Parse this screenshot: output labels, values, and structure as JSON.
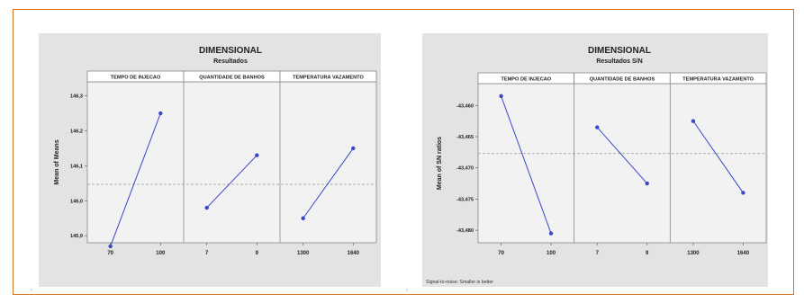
{
  "chart_data": [
    {
      "type": "line",
      "title": "DIMENSIONAL",
      "subtitle": "Resultados",
      "ylabel": "Mean of Means",
      "xlabel": "",
      "ylim": [
        145.88,
        146.34
      ],
      "yticks": [
        145.9,
        146.0,
        146.1,
        146.2,
        146.3
      ],
      "ytick_labels": [
        "145,9",
        "146,0",
        "146,1",
        "146,2",
        "146,3"
      ],
      "reference_line": 146.047,
      "grid": false,
      "panels": [
        {
          "name": "TEMPO DE INJECAO",
          "categories": [
            "70",
            "100"
          ],
          "values": [
            145.87,
            146.25
          ]
        },
        {
          "name": "QUANTIDADE DE BANHOS",
          "categories": [
            "7",
            "9"
          ],
          "values": [
            145.98,
            146.13
          ]
        },
        {
          "name": "TEMPERATURA VAZAMENTO",
          "categories": [
            "1300",
            "1640"
          ],
          "values": [
            145.95,
            146.15
          ]
        }
      ],
      "footnote": ""
    },
    {
      "type": "line",
      "title": "DIMENSIONAL",
      "subtitle": "Resultados S/N",
      "ylabel": "Mean of SN ratios",
      "xlabel": "",
      "ylim": [
        -43.482,
        -43.4565
      ],
      "yticks": [
        -43.46,
        -43.465,
        -43.47,
        -43.475,
        -43.48
      ],
      "ytick_labels": [
        "-43,460",
        "-43,465",
        "-43,470",
        "-43,475",
        "-43,480"
      ],
      "reference_line": -43.4677,
      "grid": false,
      "panels": [
        {
          "name": "TEMPO DE INJECAO",
          "categories": [
            "70",
            "100"
          ],
          "values": [
            -43.4585,
            -43.4805
          ]
        },
        {
          "name": "QUANTIDADE DE BANHOS",
          "categories": [
            "7",
            "9"
          ],
          "values": [
            -43.4635,
            -43.4725
          ]
        },
        {
          "name": "TEMPERATURA VAZAMENTO",
          "categories": [
            "1300",
            "1640"
          ],
          "values": [
            -43.4625,
            -43.474
          ]
        }
      ],
      "footnote": "Signal-to-noise: Smaller is better"
    }
  ],
  "style": {
    "accent": "#d9731f",
    "line": "#3a46c8",
    "panel_bg": "#f2f2f2",
    "chart_bg": "#e3e3e3"
  }
}
